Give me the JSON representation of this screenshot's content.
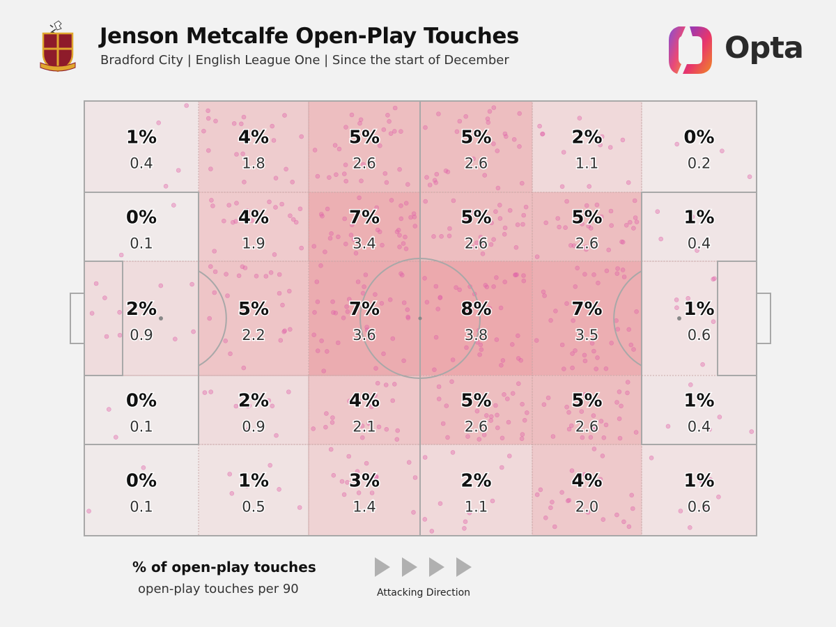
{
  "header": {
    "title": "Jenson Metcalfe Open-Play Touches",
    "subtitle": "Bradford City | English League One | Since the start of December",
    "brand": "Opta"
  },
  "colors": {
    "background": "#f2f2f2",
    "zone_fill": "#e8858a",
    "touch_dot": "#e060a8",
    "pitch_line": "#a8a8a8",
    "opta_gradient": [
      "#7a3bd0",
      "#e8366b",
      "#f08a24"
    ]
  },
  "legend": {
    "primary": "% of open-play touches",
    "secondary": "open-play touches per 90",
    "direction": "Attacking Direction"
  },
  "chart_data": {
    "type": "heatmap",
    "title": "Jenson Metcalfe Open-Play Touches",
    "grid": {
      "columns": 6,
      "rows": 5
    },
    "row_order": [
      "top-flank",
      "upper-channel",
      "central",
      "lower-channel",
      "bottom-flank"
    ],
    "column_order": [
      "own-box",
      "own-third-outer",
      "own-half-middle",
      "opp-half-middle",
      "opp-third-outer",
      "opp-box"
    ],
    "zones": [
      [
        {
          "pct": "1%",
          "p90": "0.4"
        },
        {
          "pct": "4%",
          "p90": "1.8"
        },
        {
          "pct": "5%",
          "p90": "2.6"
        },
        {
          "pct": "5%",
          "p90": "2.6"
        },
        {
          "pct": "2%",
          "p90": "1.1"
        },
        {
          "pct": "0%",
          "p90": "0.2"
        }
      ],
      [
        {
          "pct": "0%",
          "p90": "0.1"
        },
        {
          "pct": "4%",
          "p90": "1.9"
        },
        {
          "pct": "7%",
          "p90": "3.4"
        },
        {
          "pct": "5%",
          "p90": "2.6"
        },
        {
          "pct": "5%",
          "p90": "2.6"
        },
        {
          "pct": "1%",
          "p90": "0.4"
        }
      ],
      [
        {
          "pct": "2%",
          "p90": "0.9"
        },
        {
          "pct": "5%",
          "p90": "2.2"
        },
        {
          "pct": "7%",
          "p90": "3.6"
        },
        {
          "pct": "8%",
          "p90": "3.8"
        },
        {
          "pct": "7%",
          "p90": "3.5"
        },
        {
          "pct": "1%",
          "p90": "0.6"
        }
      ],
      [
        {
          "pct": "0%",
          "p90": "0.1"
        },
        {
          "pct": "2%",
          "p90": "0.9"
        },
        {
          "pct": "4%",
          "p90": "2.1"
        },
        {
          "pct": "5%",
          "p90": "2.6"
        },
        {
          "pct": "5%",
          "p90": "2.6"
        },
        {
          "pct": "1%",
          "p90": "0.4"
        }
      ],
      [
        {
          "pct": "0%",
          "p90": "0.1"
        },
        {
          "pct": "1%",
          "p90": "0.5"
        },
        {
          "pct": "3%",
          "p90": "1.4"
        },
        {
          "pct": "2%",
          "p90": "1.1"
        },
        {
          "pct": "4%",
          "p90": "2.0"
        },
        {
          "pct": "1%",
          "p90": "0.6"
        }
      ]
    ],
    "scatter": "open-play touch locations plotted as translucent dots, density proportional to touches per 90"
  }
}
